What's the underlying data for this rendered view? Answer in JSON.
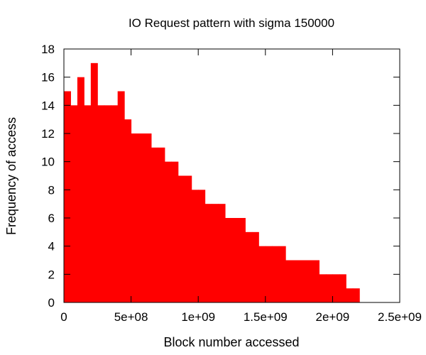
{
  "chart_data": {
    "type": "bar",
    "title": "IO Request pattern with sigma 150000",
    "xlabel": "Block number accessed",
    "ylabel": "Frequency of access",
    "xlim": [
      0,
      2500000000
    ],
    "ylim": [
      0,
      18
    ],
    "xticks": [
      {
        "value": 0,
        "label": "0"
      },
      {
        "value": 500000000,
        "label": "5e+08"
      },
      {
        "value": 1000000000,
        "label": "1e+09"
      },
      {
        "value": 1500000000,
        "label": "1.5e+09"
      },
      {
        "value": 2000000000,
        "label": "2e+09"
      },
      {
        "value": 2500000000,
        "label": "2.5e+09"
      }
    ],
    "yticks": [
      {
        "value": 0,
        "label": "0"
      },
      {
        "value": 2,
        "label": "2"
      },
      {
        "value": 4,
        "label": "4"
      },
      {
        "value": 6,
        "label": "6"
      },
      {
        "value": 8,
        "label": "8"
      },
      {
        "value": 10,
        "label": "10"
      },
      {
        "value": 12,
        "label": "12"
      },
      {
        "value": 14,
        "label": "14"
      },
      {
        "value": 16,
        "label": "16"
      },
      {
        "value": 18,
        "label": "18"
      }
    ],
    "grid": false,
    "color": "#ff0000",
    "series": [
      {
        "x": [
          0,
          50000000,
          100000000,
          150000000,
          200000000,
          250000000,
          300000000,
          350000000,
          400000000,
          450000000,
          500000000,
          550000000,
          600000000,
          650000000,
          700000000,
          750000000,
          800000000,
          850000000,
          900000000,
          950000000,
          1000000000,
          1050000000,
          1100000000,
          1150000000,
          1200000000,
          1250000000,
          1300000000,
          1350000000,
          1400000000,
          1450000000,
          1500000000,
          1550000000,
          1600000000,
          1650000000,
          1700000000,
          1750000000,
          1800000000,
          1850000000,
          1900000000,
          1950000000,
          2000000000,
          2050000000,
          2100000000,
          2150000000
        ],
        "values": [
          15,
          14,
          16,
          14,
          17,
          14,
          14,
          14,
          15,
          13,
          12,
          12,
          12,
          11,
          11,
          10,
          10,
          9,
          9,
          8,
          8,
          7,
          7,
          7,
          6,
          6,
          6,
          5,
          5,
          4,
          4,
          4,
          4,
          3,
          3,
          3,
          3,
          3,
          2,
          2,
          2,
          2,
          1,
          1
        ]
      }
    ]
  }
}
